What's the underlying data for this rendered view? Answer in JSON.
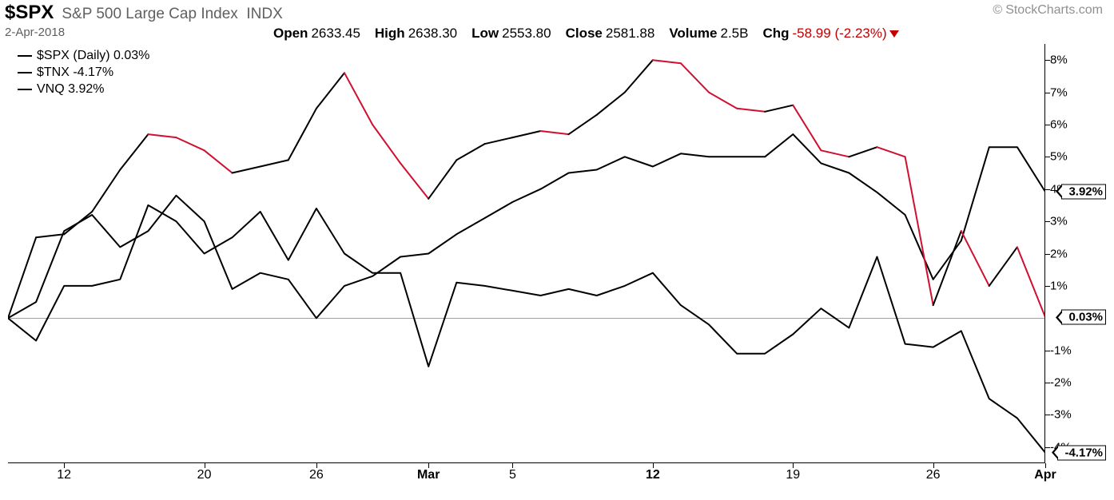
{
  "header": {
    "ticker": "$SPX",
    "ticker_name": "S&P 500 Large Cap Index",
    "ticker_type": "INDX",
    "attribution": "StockCharts.com",
    "date": "2-Apr-2018",
    "open_label": "Open",
    "open_value": "2633.45",
    "high_label": "High",
    "high_value": "2638.30",
    "low_label": "Low",
    "low_value": "2553.80",
    "close_label": "Close",
    "close_value": "2581.88",
    "volume_label": "Volume",
    "volume_value": "2.5B",
    "chg_label": "Chg",
    "chg_value": "-58.99",
    "chg_pct": "(-2.23%)"
  },
  "legend": {
    "series1": "$SPX (Daily) 0.03%",
    "series2": "$TNX -4.17%",
    "series3": "VNQ 3.92%"
  },
  "chart": {
    "type": "line",
    "background_color": "#ffffff",
    "grid_color": "#a0a0a0",
    "text_color": "#000000",
    "fontsize_axis": 15,
    "fontsize_legend": 16,
    "line_width": 2.0,
    "ylim": [
      -4.5,
      8.5
    ],
    "zero_y": 0,
    "yticks": [
      -4,
      -3,
      -2,
      -1,
      1,
      2,
      3,
      4,
      5,
      6,
      7,
      8
    ],
    "ytick_suffix": "%",
    "xticks": [
      {
        "idx": 2,
        "label": "12",
        "bold": false
      },
      {
        "idx": 7,
        "label": "20",
        "bold": false
      },
      {
        "idx": 11,
        "label": "26",
        "bold": false
      },
      {
        "idx": 15,
        "label": "Mar",
        "bold": true
      },
      {
        "idx": 18,
        "label": "5",
        "bold": false
      },
      {
        "idx": 23,
        "label": "12",
        "bold": true
      },
      {
        "idx": 28,
        "label": "19",
        "bold": false
      },
      {
        "idx": 33,
        "label": "26",
        "bold": false
      },
      {
        "idx": 37,
        "label": "Apr",
        "bold": true
      }
    ],
    "n_points": 38,
    "series_spx": {
      "color_up": "#000000",
      "color_down": "#d01030",
      "end_label": "0.03%",
      "points": [
        {
          "y": 0.0
        },
        {
          "y": 2.5
        },
        {
          "y": 2.6
        },
        {
          "y": 3.3
        },
        {
          "y": 4.6
        },
        {
          "y": 5.7
        },
        {
          "y": 5.6
        },
        {
          "y": 5.2
        },
        {
          "y": 4.5
        },
        {
          "y": 4.7
        },
        {
          "y": 4.9
        },
        {
          "y": 6.5
        },
        {
          "y": 7.6
        },
        {
          "y": 6.0
        },
        {
          "y": 4.8
        },
        {
          "y": 3.7
        },
        {
          "y": 4.9
        },
        {
          "y": 5.4
        },
        {
          "y": 5.6
        },
        {
          "y": 5.8
        },
        {
          "y": 5.7
        },
        {
          "y": 6.3
        },
        {
          "y": 7.0
        },
        {
          "y": 8.0
        },
        {
          "y": 7.9
        },
        {
          "y": 7.0
        },
        {
          "y": 6.5
        },
        {
          "y": 6.4
        },
        {
          "y": 6.6
        },
        {
          "y": 5.2
        },
        {
          "y": 5.0
        },
        {
          "y": 5.3
        },
        {
          "y": 5.0
        },
        {
          "y": 0.4
        },
        {
          "y": 2.7
        },
        {
          "y": 1.0
        },
        {
          "y": 2.2
        },
        {
          "y": 0.03
        }
      ]
    },
    "series_tnx": {
      "color": "#000000",
      "end_label": "-4.17%",
      "points": [
        0.0,
        -0.7,
        1.0,
        1.0,
        1.2,
        3.5,
        3.0,
        2.0,
        2.5,
        3.3,
        1.8,
        3.4,
        2.0,
        1.4,
        1.4,
        -1.5,
        1.1,
        1.0,
        0.85,
        0.7,
        0.9,
        0.7,
        1.0,
        1.4,
        0.4,
        -0.2,
        -1.1,
        -1.1,
        -0.5,
        0.3,
        -0.3,
        1.9,
        -0.8,
        -0.9,
        -0.4,
        -2.5,
        -3.1,
        -4.17
      ]
    },
    "series_vnq": {
      "color": "#000000",
      "end_label": "3.92%",
      "points": [
        0.0,
        0.5,
        2.7,
        3.2,
        2.2,
        2.7,
        3.8,
        3.0,
        0.9,
        1.4,
        1.2,
        0.0,
        1.0,
        1.3,
        1.9,
        2.0,
        2.6,
        3.1,
        3.6,
        4.0,
        4.5,
        4.6,
        5.0,
        4.7,
        5.1,
        5.0,
        5.0,
        5.0,
        5.7,
        4.8,
        4.5,
        3.9,
        3.2,
        1.2,
        2.4,
        5.3,
        5.3,
        3.92
      ]
    }
  }
}
